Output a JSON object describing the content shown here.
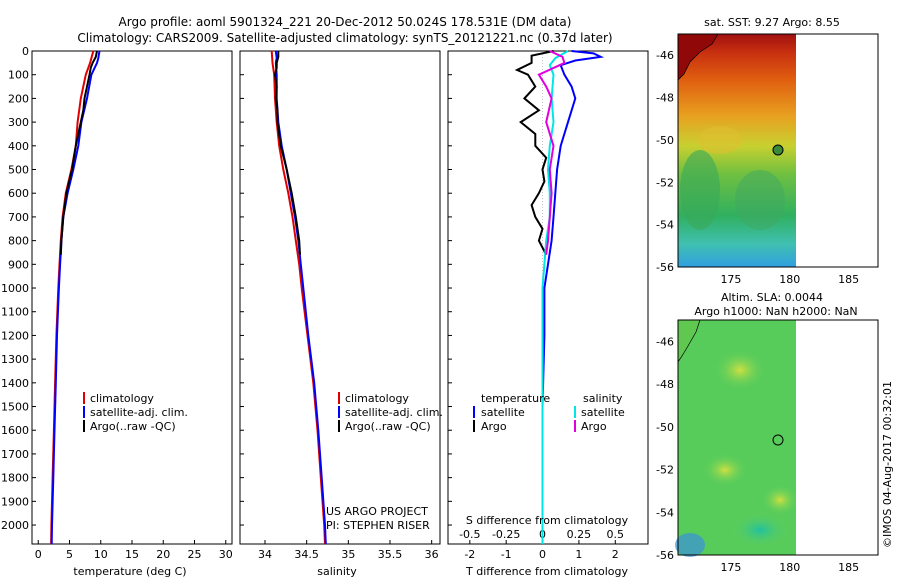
{
  "title_line1": "Argo profile: aoml 5901324_221 20-Dec-2012 50.024S 178.531E (DM data)",
  "title_line2": "Climatology: CARS2009. Satellite-adjusted climatology: synTS_20121221.nc (0.37d later)",
  "colors": {
    "climatology": "#e00000",
    "satellite": "#0000ff",
    "argo": "#000000",
    "salinity_satellite": "#00e5e5",
    "salinity_argo": "#e000e0"
  },
  "chart_data": [
    {
      "type": "line",
      "xlabel": "temperature (deg C)",
      "xlim": [
        -1,
        31
      ],
      "xticks": [
        "0",
        "5",
        "10",
        "15",
        "20",
        "25",
        "30"
      ],
      "ylim": [
        0,
        2080
      ],
      "yticks": [
        "0",
        "100",
        "200",
        "300",
        "400",
        "500",
        "600",
        "700",
        "800",
        "900",
        "1000",
        "1100",
        "1200",
        "1300",
        "1400",
        "1500",
        "1600",
        "1700",
        "1800",
        "1900",
        "2000"
      ],
      "legend": [
        "climatology",
        "satellite-adj. clim.",
        "Argo(..raw -QC)"
      ],
      "series": [
        {
          "name": "climatology",
          "y": [
            0,
            50,
            100,
            200,
            300,
            400,
            500,
            600,
            700,
            800,
            900,
            1000,
            1200,
            1400,
            1600,
            1800,
            2000,
            2080
          ],
          "x": [
            8.8,
            8.3,
            7.6,
            6.8,
            6.3,
            6.0,
            5.3,
            4.4,
            3.9,
            3.6,
            3.4,
            3.2,
            2.9,
            2.7,
            2.5,
            2.3,
            2.1,
            2.05
          ]
        },
        {
          "name": "satellite-adj. clim.",
          "y": [
            0,
            30,
            50,
            100,
            200,
            300,
            400,
            500,
            600,
            700,
            800,
            900,
            1000,
            1200,
            1400,
            1600,
            1800,
            2000,
            2080
          ],
          "x": [
            9.8,
            9.6,
            9.4,
            8.5,
            7.8,
            6.9,
            6.4,
            5.6,
            4.7,
            4.0,
            3.7,
            3.5,
            3.3,
            3.0,
            2.8,
            2.6,
            2.4,
            2.2,
            2.15
          ]
        },
        {
          "name": "Argo(..raw -QC)",
          "y": [
            0,
            25,
            50,
            70,
            100,
            150,
            200,
            250,
            300,
            400,
            500,
            600,
            700,
            800,
            860
          ],
          "x": [
            9.4,
            9.2,
            8.7,
            8.4,
            8.2,
            7.8,
            7.4,
            7.2,
            6.8,
            6.0,
            5.4,
            4.5,
            4.0,
            3.7,
            3.6
          ]
        }
      ]
    },
    {
      "type": "line",
      "xlabel": "salinity",
      "xlim": [
        33.7,
        36.1
      ],
      "xticks": [
        "34",
        "34.5",
        "35",
        "35.5",
        "36"
      ],
      "ylim": [
        0,
        2080
      ],
      "legend": [
        "climatology",
        "satellite-adj. clim.",
        "Argo(..raw -QC)"
      ],
      "annotation_line1": "US ARGO PROJECT",
      "annotation_line2": "PI: STEPHEN RISER",
      "series": [
        {
          "name": "climatology",
          "y": [
            0,
            50,
            100,
            200,
            300,
            400,
            500,
            600,
            700,
            800,
            900,
            1000,
            1200,
            1400,
            1600,
            1800,
            2000,
            2080
          ],
          "x": [
            34.08,
            34.09,
            34.11,
            34.12,
            34.14,
            34.17,
            34.22,
            34.28,
            34.33,
            34.37,
            34.41,
            34.44,
            34.51,
            34.58,
            34.63,
            34.67,
            34.71,
            34.72
          ]
        },
        {
          "name": "satellite-adj. clim.",
          "y": [
            0,
            30,
            50,
            100,
            200,
            300,
            400,
            500,
            600,
            700,
            800,
            900,
            1000,
            1200,
            1400,
            1600,
            1800,
            2000,
            2080
          ],
          "x": [
            34.13,
            34.14,
            34.13,
            34.14,
            34.14,
            34.16,
            34.2,
            34.26,
            34.31,
            34.36,
            34.4,
            34.43,
            34.46,
            34.52,
            34.59,
            34.64,
            34.68,
            34.72,
            34.73
          ]
        },
        {
          "name": "Argo(..raw -QC)",
          "y": [
            0,
            25,
            50,
            70,
            100,
            150,
            200,
            250,
            300,
            400,
            500,
            600,
            700,
            800,
            860
          ],
          "x": [
            34.16,
            34.16,
            34.14,
            34.14,
            34.12,
            34.14,
            34.13,
            34.15,
            34.15,
            34.19,
            34.26,
            34.32,
            34.37,
            34.41,
            34.42
          ]
        }
      ]
    },
    {
      "type": "line",
      "xlabel": "T difference from climatology",
      "xlabel_top": "S difference from climatology",
      "xlim": [
        -2.6,
        2.9
      ],
      "xticks": [
        "-2",
        "-1",
        "0",
        "1",
        "2"
      ],
      "xticks_top": [
        "-0.5",
        "-0.25",
        "0",
        "0.25",
        "0.5"
      ],
      "ylim": [
        0,
        2080
      ],
      "legend_headers": [
        "temperature",
        "salinity"
      ],
      "legend": [
        "satellite",
        "Argo",
        "satellite",
        "Argo"
      ],
      "series": [
        {
          "name": "satellite",
          "y": [
            0,
            10,
            25,
            40,
            60,
            100,
            150,
            200,
            300,
            400,
            500,
            600,
            700,
            800,
            900,
            1000,
            1200,
            1500,
            2000,
            2080
          ],
          "x": [
            0.8,
            1.4,
            1.6,
            0.9,
            0.5,
            0.6,
            0.8,
            0.9,
            0.7,
            0.5,
            0.4,
            0.35,
            0.3,
            0.25,
            0.15,
            0.05,
            0.05,
            0.0,
            0.0,
            0.0
          ]
        },
        {
          "name": "Argo",
          "y": [
            0,
            20,
            50,
            80,
            100,
            150,
            200,
            250,
            300,
            350,
            400,
            450,
            500,
            550,
            600,
            650,
            700,
            750,
            800,
            860
          ],
          "x": [
            0.3,
            -0.3,
            -0.3,
            -0.7,
            -0.4,
            -0.2,
            -0.5,
            -0.1,
            -0.6,
            -0.2,
            -0.2,
            0.1,
            0.0,
            0.05,
            -0.1,
            -0.3,
            -0.2,
            0.0,
            -0.1,
            0.1
          ]
        },
        {
          "name": "satellite",
          "y": [
            0,
            30,
            60,
            100,
            200,
            300,
            400,
            500,
            600,
            700,
            800,
            900,
            1000,
            1200,
            1500,
            2000,
            2080
          ],
          "x": [
            0.7,
            0.35,
            0.2,
            0.3,
            0.25,
            0.3,
            0.2,
            0.15,
            0.2,
            0.2,
            0.1,
            0.05,
            0.0,
            0.0,
            0.0,
            0.0,
            0.0
          ]
        },
        {
          "name": "Argo",
          "y": [
            0,
            25,
            50,
            100,
            150,
            200,
            300,
            400,
            500,
            600,
            700,
            800,
            860
          ],
          "x": [
            0.2,
            0.55,
            0.6,
            -0.1,
            0.1,
            0.25,
            0.1,
            0.3,
            0.2,
            0.25,
            0.2,
            0.15,
            0.1
          ]
        }
      ]
    }
  ],
  "map_top": {
    "title": "sat. SST: 9.27 Argo: 8.55",
    "yticks": [
      "-46",
      "-48",
      "-50",
      "-52",
      "-54",
      "-56"
    ],
    "xticks": [
      "175",
      "180",
      "185"
    ]
  },
  "map_bottom": {
    "title_line1": "Altim. SLA: 0.0044",
    "title_line2": "Argo h1000: NaN h2000: NaN",
    "yticks": [
      "-46",
      "-48",
      "-50",
      "-52",
      "-54",
      "-56"
    ],
    "xticks": [
      "175",
      "180",
      "185"
    ]
  },
  "footer": "©IMOS 04-Aug-2017 00:32:01"
}
